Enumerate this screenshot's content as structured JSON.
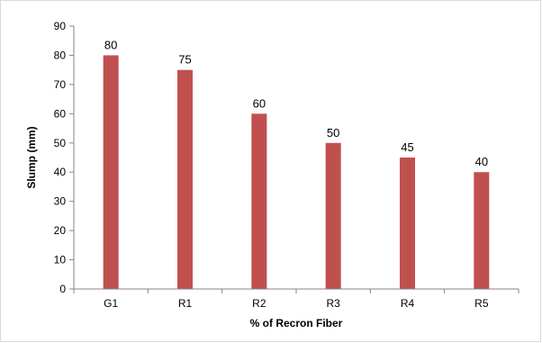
{
  "chart_data": {
    "type": "bar",
    "categories": [
      "G1",
      "R1",
      "R2",
      "R3",
      "R4",
      "R5"
    ],
    "values": [
      80,
      75,
      60,
      50,
      45,
      40
    ],
    "data_labels": [
      "80",
      "75",
      "60",
      "50",
      "45",
      "40"
    ],
    "title": "",
    "xlabel": "% of Recron Fiber",
    "ylabel": "Slump (mm)",
    "ylim": [
      0,
      90
    ],
    "yticks": [
      0,
      10,
      20,
      30,
      40,
      50,
      60,
      70,
      80,
      90
    ],
    "ytick_labels": [
      "0",
      "10",
      "20",
      "30",
      "40",
      "50",
      "60",
      "70",
      "80",
      "90"
    ],
    "grid": false,
    "legend": "none",
    "bar_color": "#c0504d"
  }
}
